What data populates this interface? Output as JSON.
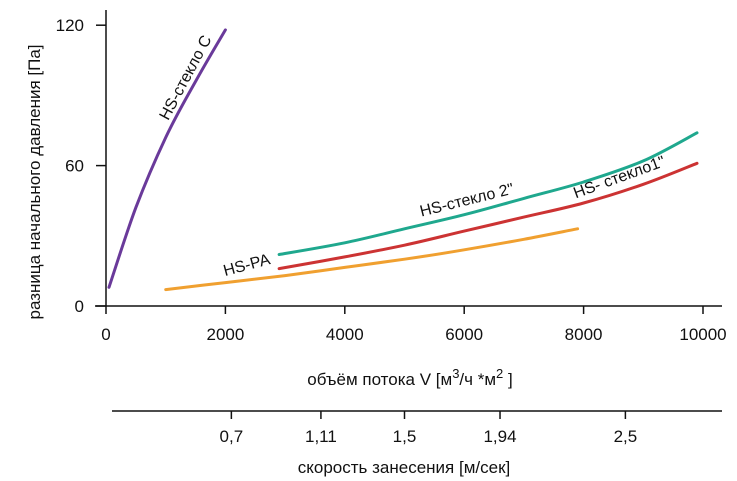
{
  "chart_data": {
    "type": "line",
    "ylabel": "разница начального давления  [Па]",
    "xlabel": {
      "prefix": "объём потока V [м",
      "sup1": "3",
      "mid": "/ч *м",
      "sup2": "2",
      "suffix": " ]"
    },
    "secondary_xlabel": "скорость занесения  [м/сек]",
    "xlim": [
      0,
      10500
    ],
    "ylim": [
      0,
      125
    ],
    "x_ticks": [
      "0",
      "2000",
      "4000",
      "6000",
      "8000",
      "10000"
    ],
    "y_ticks": [
      "0",
      "60",
      "120"
    ],
    "secondary_x_ticks": [
      {
        "label": "0,7",
        "at": 2100
      },
      {
        "label": "1,11",
        "at": 3600
      },
      {
        "label": "1,5",
        "at": 5000
      },
      {
        "label": "1,94",
        "at": 6600
      },
      {
        "label": "2,5",
        "at": 8700
      }
    ],
    "grid": false,
    "series": [
      {
        "name": "HS-стекло C",
        "color": "#6a3a9a",
        "points": [
          [
            50,
            8
          ],
          [
            500,
            42
          ],
          [
            1000,
            72
          ],
          [
            1500,
            96
          ],
          [
            2000,
            118
          ]
        ]
      },
      {
        "name": "HS-стекло 2\"",
        "color": "#1fa88e",
        "points": [
          [
            2900,
            22
          ],
          [
            4000,
            27
          ],
          [
            5000,
            33
          ],
          [
            6000,
            39
          ],
          [
            7000,
            46
          ],
          [
            8000,
            53
          ],
          [
            9000,
            62
          ],
          [
            9900,
            74
          ]
        ]
      },
      {
        "name": "HS- стекло1\"",
        "color": "#cc3333",
        "points": [
          [
            2900,
            16
          ],
          [
            4000,
            21
          ],
          [
            5000,
            26
          ],
          [
            6000,
            32
          ],
          [
            7000,
            38
          ],
          [
            8000,
            44
          ],
          [
            9000,
            52
          ],
          [
            9900,
            61
          ]
        ]
      },
      {
        "name": "HS-PA",
        "color": "#f0a030",
        "points": [
          [
            1000,
            7
          ],
          [
            2000,
            10
          ],
          [
            3000,
            13
          ],
          [
            4000,
            16.5
          ],
          [
            5000,
            20
          ],
          [
            6000,
            24
          ],
          [
            7000,
            28.5
          ],
          [
            7900,
            33
          ]
        ]
      }
    ]
  }
}
